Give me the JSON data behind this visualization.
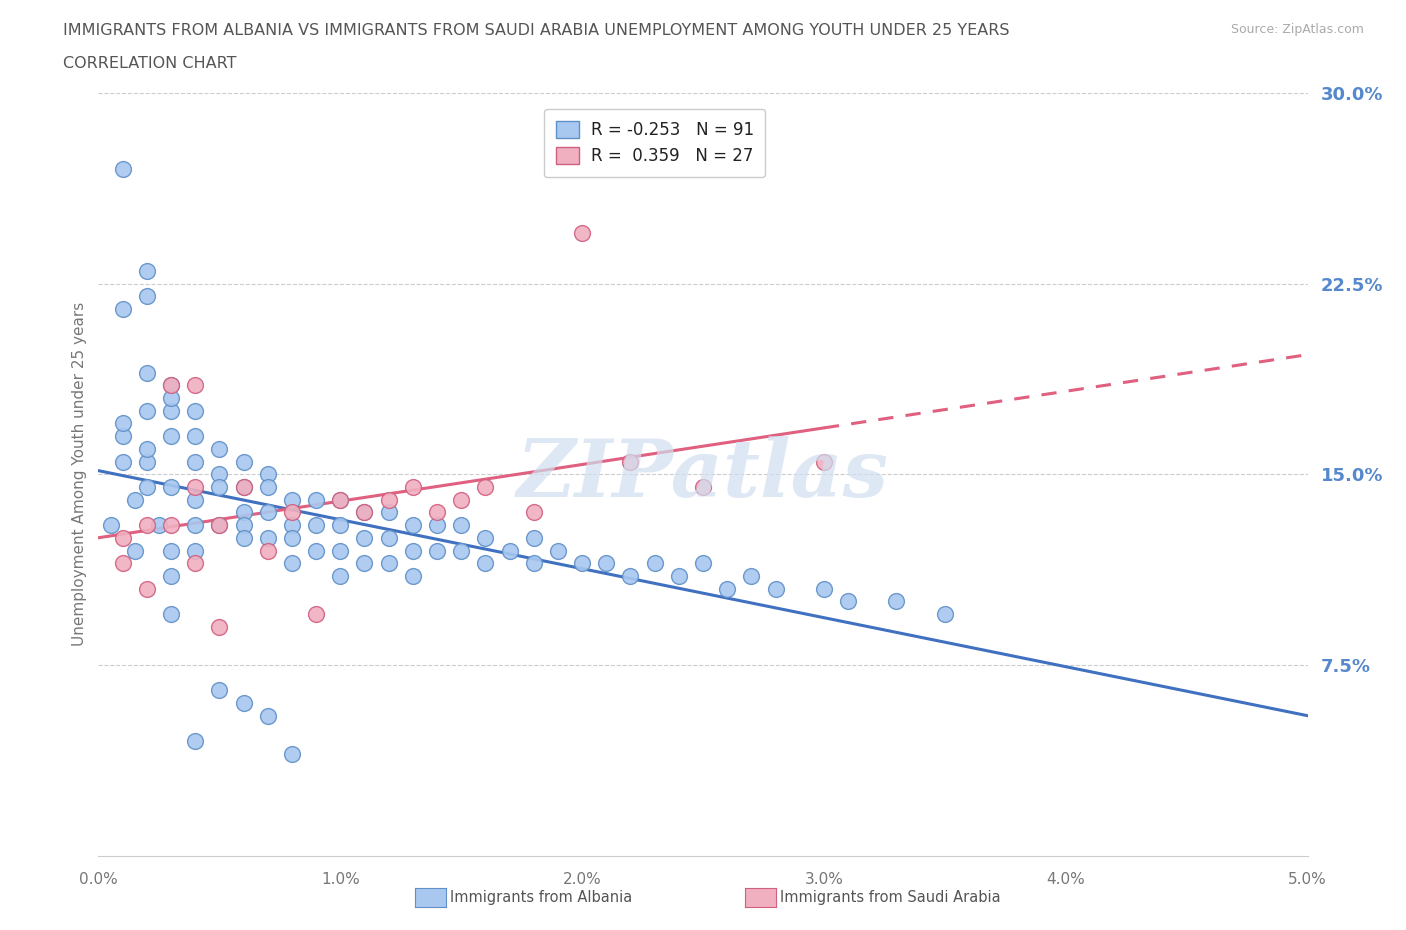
{
  "title_line1": "IMMIGRANTS FROM ALBANIA VS IMMIGRANTS FROM SAUDI ARABIA UNEMPLOYMENT AMONG YOUTH UNDER 25 YEARS",
  "title_line2": "CORRELATION CHART",
  "source_text": "Source: ZipAtlas.com",
  "ylabel": "Unemployment Among Youth under 25 years",
  "xlim": [
    0.0,
    0.05
  ],
  "ylim": [
    0.0,
    0.3
  ],
  "xtick_vals": [
    0.0,
    0.01,
    0.02,
    0.03,
    0.04,
    0.05
  ],
  "xtick_labels": [
    "0.0%",
    "1.0%",
    "2.0%",
    "3.0%",
    "4.0%",
    "5.0%"
  ],
  "ytick_vals": [
    0.0,
    0.075,
    0.15,
    0.225,
    0.3
  ],
  "ytick_labels": [
    "",
    "7.5%",
    "15.0%",
    "22.5%",
    "30.0%"
  ],
  "albania_R": -0.253,
  "albania_N": 91,
  "saudi_R": 0.359,
  "saudi_N": 27,
  "albania_color": "#a8c8f0",
  "saudi_color": "#f0b0c0",
  "albania_edge_color": "#6090c8",
  "saudi_edge_color": "#d06080",
  "albania_line_color": "#4070c0",
  "saudi_line_color": "#e06080",
  "watermark": "ZIPatlas",
  "watermark_color": "#d0dff0",
  "albania_x": [
    0.0005,
    0.001,
    0.001,
    0.001,
    0.0015,
    0.0015,
    0.002,
    0.002,
    0.002,
    0.002,
    0.002,
    0.0025,
    0.003,
    0.003,
    0.003,
    0.003,
    0.003,
    0.003,
    0.004,
    0.004,
    0.004,
    0.004,
    0.004,
    0.004,
    0.005,
    0.005,
    0.005,
    0.005,
    0.006,
    0.006,
    0.006,
    0.006,
    0.006,
    0.007,
    0.007,
    0.007,
    0.007,
    0.008,
    0.008,
    0.008,
    0.008,
    0.009,
    0.009,
    0.009,
    0.01,
    0.01,
    0.01,
    0.01,
    0.011,
    0.011,
    0.011,
    0.012,
    0.012,
    0.012,
    0.013,
    0.013,
    0.013,
    0.014,
    0.014,
    0.015,
    0.015,
    0.016,
    0.016,
    0.017,
    0.018,
    0.018,
    0.019,
    0.02,
    0.021,
    0.022,
    0.023,
    0.024,
    0.025,
    0.026,
    0.027,
    0.028,
    0.03,
    0.031,
    0.033,
    0.035,
    0.001,
    0.001,
    0.002,
    0.002,
    0.003,
    0.003,
    0.004,
    0.005,
    0.006,
    0.007,
    0.008
  ],
  "albania_y": [
    0.13,
    0.155,
    0.165,
    0.17,
    0.14,
    0.12,
    0.145,
    0.155,
    0.16,
    0.175,
    0.19,
    0.13,
    0.145,
    0.165,
    0.175,
    0.185,
    0.18,
    0.11,
    0.155,
    0.165,
    0.175,
    0.14,
    0.13,
    0.12,
    0.16,
    0.15,
    0.145,
    0.13,
    0.155,
    0.145,
    0.135,
    0.13,
    0.125,
    0.15,
    0.145,
    0.135,
    0.125,
    0.14,
    0.13,
    0.125,
    0.115,
    0.14,
    0.13,
    0.12,
    0.14,
    0.13,
    0.12,
    0.11,
    0.135,
    0.125,
    0.115,
    0.135,
    0.125,
    0.115,
    0.13,
    0.12,
    0.11,
    0.13,
    0.12,
    0.13,
    0.12,
    0.125,
    0.115,
    0.12,
    0.125,
    0.115,
    0.12,
    0.115,
    0.115,
    0.11,
    0.115,
    0.11,
    0.115,
    0.105,
    0.11,
    0.105,
    0.105,
    0.1,
    0.1,
    0.095,
    0.27,
    0.215,
    0.22,
    0.23,
    0.12,
    0.095,
    0.045,
    0.065,
    0.06,
    0.055,
    0.04
  ],
  "saudi_x": [
    0.001,
    0.001,
    0.002,
    0.002,
    0.003,
    0.003,
    0.004,
    0.004,
    0.004,
    0.005,
    0.005,
    0.006,
    0.007,
    0.008,
    0.009,
    0.01,
    0.011,
    0.012,
    0.013,
    0.014,
    0.015,
    0.016,
    0.018,
    0.02,
    0.022,
    0.025,
    0.03
  ],
  "saudi_y": [
    0.115,
    0.125,
    0.105,
    0.13,
    0.13,
    0.185,
    0.185,
    0.145,
    0.115,
    0.13,
    0.09,
    0.145,
    0.12,
    0.135,
    0.095,
    0.14,
    0.135,
    0.14,
    0.145,
    0.135,
    0.14,
    0.145,
    0.135,
    0.245,
    0.155,
    0.145,
    0.155
  ]
}
